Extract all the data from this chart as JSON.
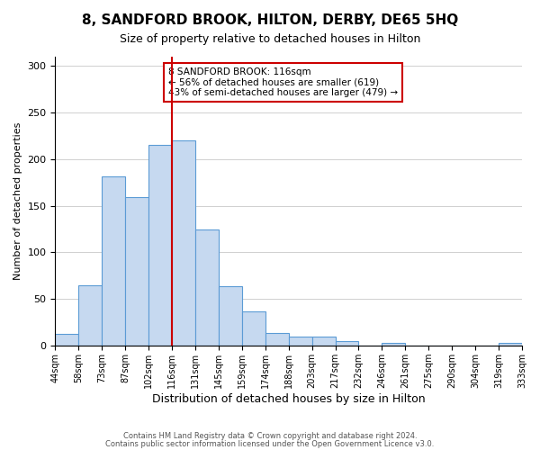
{
  "title": "8, SANDFORD BROOK, HILTON, DERBY, DE65 5HQ",
  "subtitle": "Size of property relative to detached houses in Hilton",
  "xlabel": "Distribution of detached houses by size in Hilton",
  "ylabel": "Number of detached properties",
  "bin_labels": [
    "44sqm",
    "58sqm",
    "73sqm",
    "87sqm",
    "102sqm",
    "116sqm",
    "131sqm",
    "145sqm",
    "159sqm",
    "174sqm",
    "188sqm",
    "203sqm",
    "217sqm",
    "232sqm",
    "246sqm",
    "261sqm",
    "275sqm",
    "290sqm",
    "304sqm",
    "319sqm",
    "333sqm"
  ],
  "bar_heights": [
    13,
    65,
    181,
    159,
    215,
    220,
    125,
    64,
    37,
    14,
    10,
    10,
    5,
    0,
    3,
    0,
    0,
    0,
    0,
    3
  ],
  "bar_color": "#c6d9f0",
  "bar_edge_color": "#5b9bd5",
  "vline_x": 5,
  "vline_color": "#cc0000",
  "annotation_text": "8 SANDFORD BROOK: 116sqm\n← 56% of detached houses are smaller (619)\n43% of semi-detached houses are larger (479) →",
  "annotation_box_edge_color": "#cc0000",
  "ylim": [
    0,
    310
  ],
  "yticks": [
    0,
    50,
    100,
    150,
    200,
    250,
    300
  ],
  "footer_line1": "Contains HM Land Registry data © Crown copyright and database right 2024.",
  "footer_line2": "Contains public sector information licensed under the Open Government Licence v3.0.",
  "background_color": "#ffffff",
  "grid_color": "#d0d0d0"
}
